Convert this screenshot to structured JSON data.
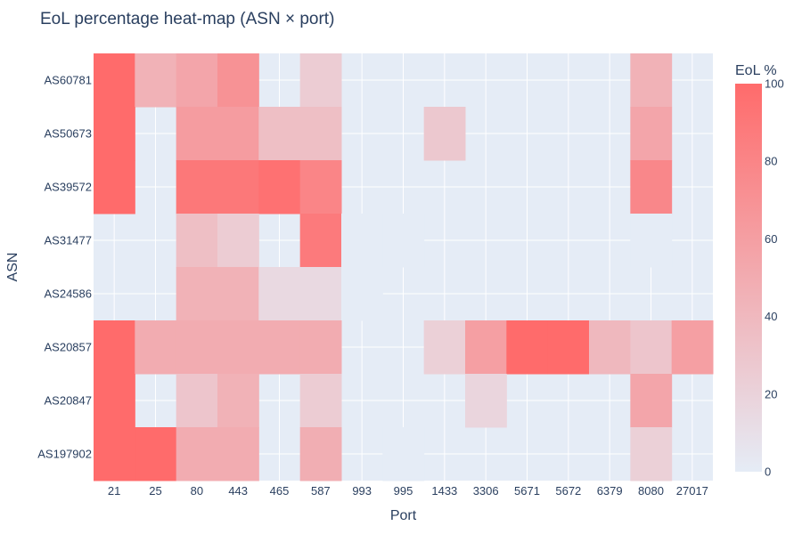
{
  "chart_data": {
    "type": "heatmap",
    "title": "EoL percentage heat-map (ASN × port)",
    "xlabel": "Port",
    "ylabel": "ASN",
    "x": [
      "21",
      "25",
      "80",
      "443",
      "465",
      "587",
      "993",
      "995",
      "1433",
      "3306",
      "5671",
      "5672",
      "6379",
      "8080",
      "27017"
    ],
    "y": [
      "AS60781",
      "AS50673",
      "AS39572",
      "AS31477",
      "AS24586",
      "AS20857",
      "AS20847",
      "AS197902"
    ],
    "z": [
      [
        100,
        45,
        55,
        70,
        null,
        25,
        null,
        null,
        null,
        null,
        null,
        null,
        null,
        45,
        null
      ],
      [
        100,
        null,
        62,
        62,
        35,
        35,
        null,
        null,
        28,
        null,
        null,
        null,
        null,
        55,
        null
      ],
      [
        100,
        null,
        90,
        90,
        95,
        80,
        null,
        null,
        null,
        null,
        null,
        null,
        null,
        78,
        null
      ],
      [
        null,
        null,
        35,
        25,
        null,
        88,
        0,
        0,
        null,
        null,
        null,
        null,
        null,
        0,
        null
      ],
      [
        null,
        null,
        45,
        45,
        15,
        15,
        0,
        null,
        null,
        null,
        null,
        null,
        null,
        null,
        null
      ],
      [
        100,
        50,
        50,
        50,
        50,
        50,
        null,
        null,
        22,
        60,
        100,
        100,
        40,
        30,
        60
      ],
      [
        100,
        null,
        30,
        45,
        null,
        25,
        null,
        null,
        null,
        18,
        null,
        null,
        null,
        55,
        null
      ],
      [
        100,
        100,
        50,
        50,
        null,
        48,
        null,
        0,
        null,
        null,
        null,
        null,
        null,
        22,
        null
      ]
    ],
    "zlim": [
      0,
      100
    ],
    "colorscale": [
      "#e5ecf6",
      "#ff6b6b"
    ],
    "colorbar_title": "EoL %",
    "colorbar_ticks": [
      "0",
      "20",
      "40",
      "60",
      "80",
      "100"
    ],
    "plot_background": "#e5ecf6",
    "grid": true
  }
}
